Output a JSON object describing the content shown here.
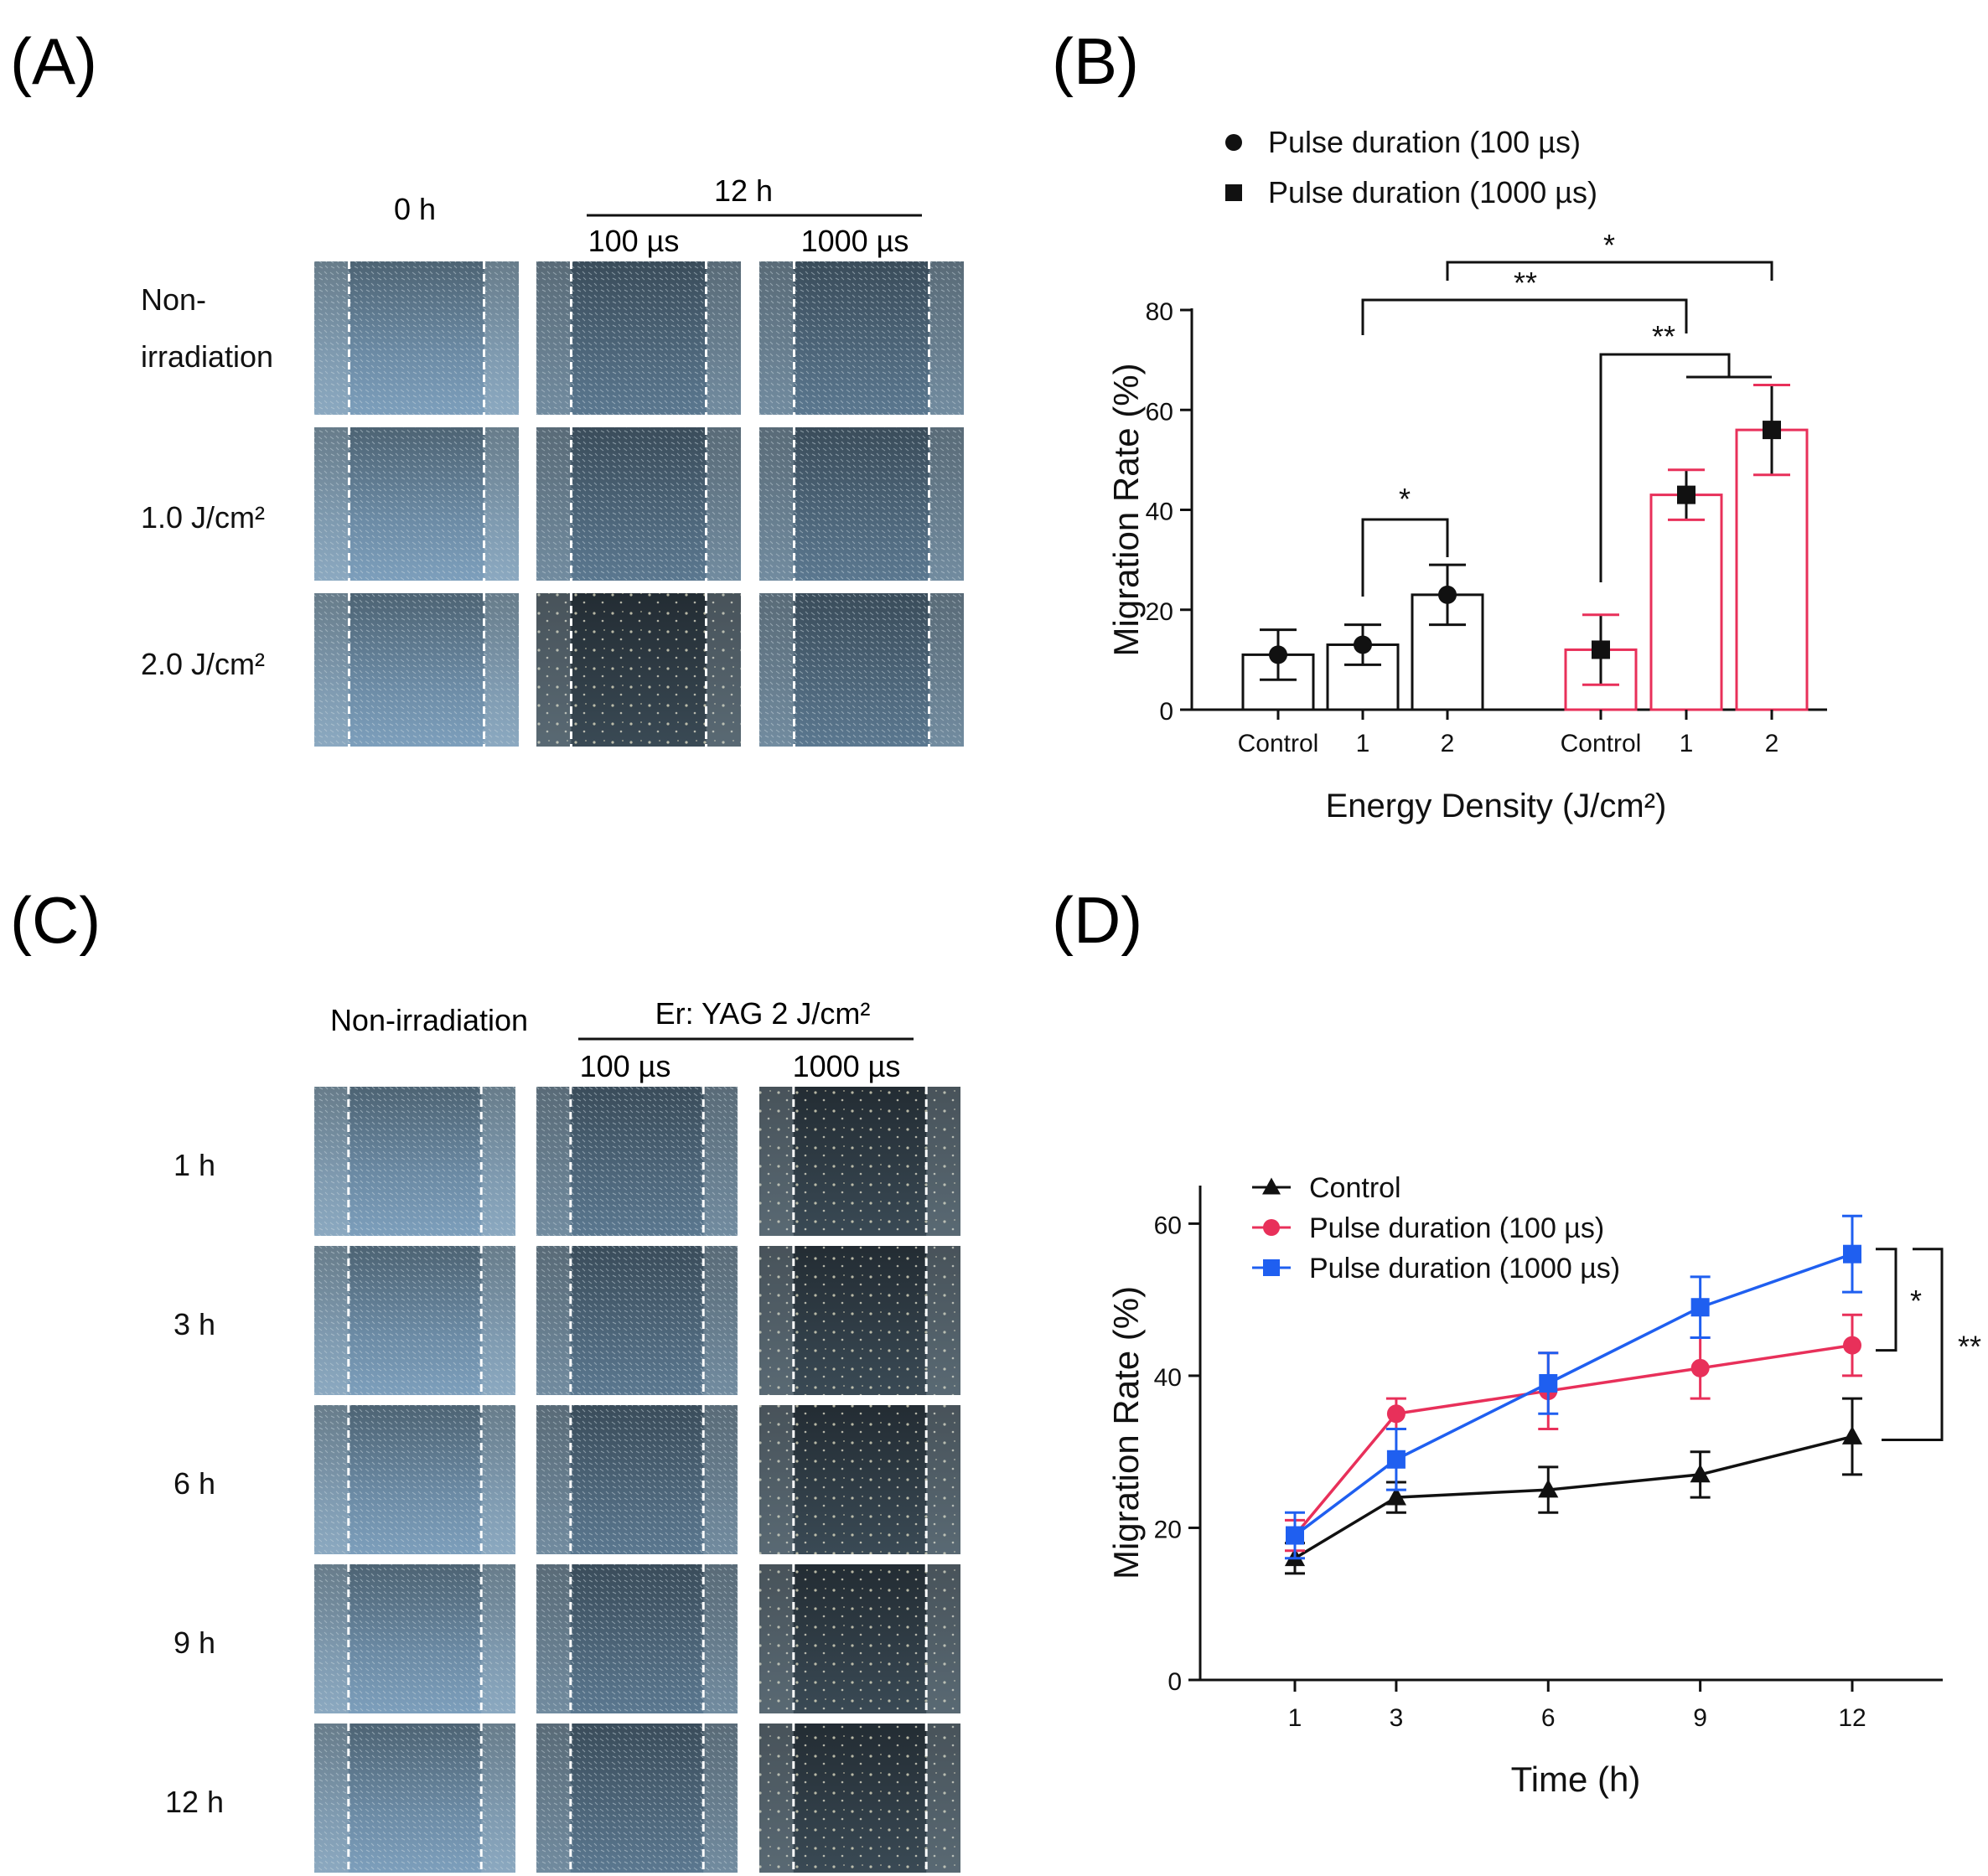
{
  "panels": {
    "A": {
      "letter": "(A)",
      "col_time_0": "0 h",
      "col_time_12": "12 h",
      "col_pulse_100": "100 µs",
      "col_pulse_1000": "1000 µs",
      "rows": [
        "Non-\nirradiation",
        "1.0 J/cm²",
        "2.0 J/cm²"
      ]
    },
    "C": {
      "letter": "(C)",
      "col_nonirr": "Non-irradiation",
      "col_group": "Er: YAG 2 J/cm²",
      "col_pulse_100": "100 µs",
      "col_pulse_1000": "1000 µs",
      "rows": [
        "1 h",
        "3 h",
        "6 h",
        "9 h",
        "12 h"
      ]
    },
    "B": {
      "letter": "(B)"
    },
    "D": {
      "letter": "(D)"
    }
  },
  "colors": {
    "black": "#111111",
    "red": "#e8305a",
    "blue": "#1f5ff0",
    "micro_light": "#6f8fa8",
    "micro_dark": "#26323d"
  },
  "chart_data": [
    {
      "id": "B",
      "type": "bar",
      "xlabel": "Energy Density (J/cm²)",
      "ylabel": "Migration Rate (%)",
      "ylim": [
        0,
        80
      ],
      "yticks": [
        0,
        20,
        40,
        60,
        80
      ],
      "legend": [
        "Pulse duration (100 µs)",
        "Pulse duration (1000  µs)"
      ],
      "legend_placement": "top",
      "groups": [
        {
          "name": "Pulse duration (100 µs)",
          "categories": [
            "Control",
            "1",
            "2"
          ],
          "values": [
            11,
            13,
            23
          ],
          "errors": [
            5,
            4,
            6
          ],
          "color": "black",
          "marker": "circle"
        },
        {
          "name": "Pulse duration (1000  µs)",
          "categories": [
            "Control",
            "1",
            "2"
          ],
          "values": [
            12,
            43,
            56
          ],
          "errors": [
            7,
            5,
            9
          ],
          "color": "red",
          "marker": "square"
        }
      ],
      "significance": [
        "*",
        "**",
        "**",
        "*"
      ]
    },
    {
      "id": "D",
      "type": "line",
      "xlabel": "Time (h)",
      "ylabel": "Migration Rate (%)",
      "x": [
        1,
        3,
        6,
        9,
        12
      ],
      "xticks": [
        "1",
        "3",
        "6",
        "9",
        "12"
      ],
      "ylim": [
        0,
        65
      ],
      "yticks": [
        0,
        20,
        40,
        60
      ],
      "legend_placement": "top-left",
      "series": [
        {
          "name": "Control",
          "values": [
            16,
            24,
            25,
            27,
            32
          ],
          "errors": [
            2,
            2,
            3,
            3,
            5
          ],
          "color": "black",
          "marker": "triangle"
        },
        {
          "name": "Pulse duration (100 µs)",
          "values": [
            19,
            35,
            38,
            41,
            44
          ],
          "errors": [
            2,
            2,
            5,
            4,
            4
          ],
          "color": "red",
          "marker": "circle"
        },
        {
          "name": "Pulse duration (1000  µs)",
          "values": [
            19,
            29,
            39,
            49,
            56
          ],
          "errors": [
            3,
            4,
            4,
            4,
            5
          ],
          "color": "blue",
          "marker": "square"
        }
      ],
      "significance": [
        "*",
        "**"
      ]
    }
  ]
}
